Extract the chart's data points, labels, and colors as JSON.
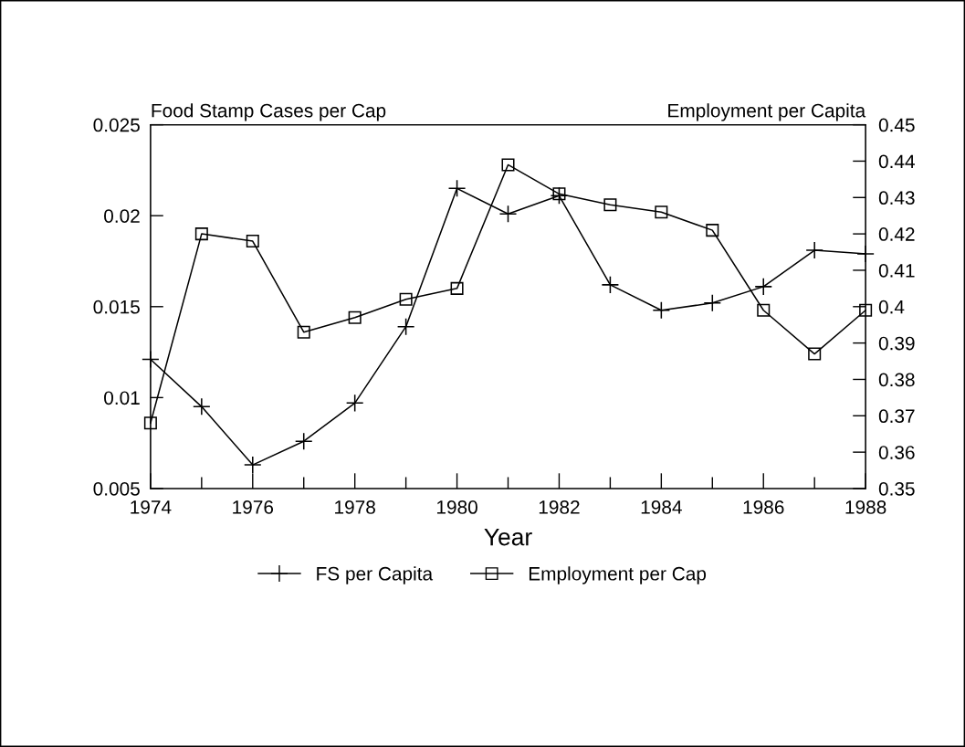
{
  "chart_data": {
    "type": "line",
    "ylabel": "Food Stamp Cases per Cap",
    "y2label": "Employment per Capita",
    "xlabel": "Year",
    "x": [
      1974,
      1975,
      1976,
      1977,
      1978,
      1979,
      1980,
      1981,
      1982,
      1983,
      1984,
      1985,
      1986,
      1987,
      1988
    ],
    "series": [
      {
        "name": "FS per Capita",
        "color": "#000000",
        "marker": "cross",
        "values": [
          0.0121,
          0.0095,
          0.0063,
          0.0076,
          0.0097,
          0.0139,
          0.0215,
          0.0201,
          0.0211,
          0.0162,
          0.0148,
          0.0152,
          0.0161,
          0.0181,
          0.0179
        ]
      },
      {
        "name": "Employment per Cap",
        "color": "#000000",
        "marker": "square",
        "axis": "y2",
        "values": [
          0.368,
          0.42,
          0.418,
          0.393,
          0.397,
          0.402,
          0.405,
          0.439,
          0.431,
          0.428,
          0.426,
          0.421,
          0.399,
          0.387,
          0.399
        ]
      }
    ],
    "xlim": [
      1974,
      1988
    ],
    "xticks": [
      1974,
      {
        "value": 1975,
        "label": null
      },
      1976,
      {
        "value": 1977,
        "label": null
      },
      1978,
      {
        "value": 1979,
        "label": null
      },
      1980,
      {
        "value": 1981,
        "label": null
      },
      1982,
      {
        "value": 1983,
        "label": null
      },
      1984,
      {
        "value": 1985,
        "label": null
      },
      1986,
      {
        "value": 1987,
        "label": null
      },
      1988
    ],
    "ylim": [
      0.005,
      0.025
    ],
    "yticks": [
      0.005,
      0.01,
      0.015,
      0.02,
      0.025
    ],
    "y2lim": [
      0.35,
      0.45
    ],
    "y2ticks": [
      0.35,
      0.36,
      0.37,
      0.38,
      0.39,
      0.4,
      0.41,
      0.42,
      0.43,
      0.44,
      0.45
    ],
    "grid": false,
    "legend": "bottom",
    "line_style": "solid"
  }
}
